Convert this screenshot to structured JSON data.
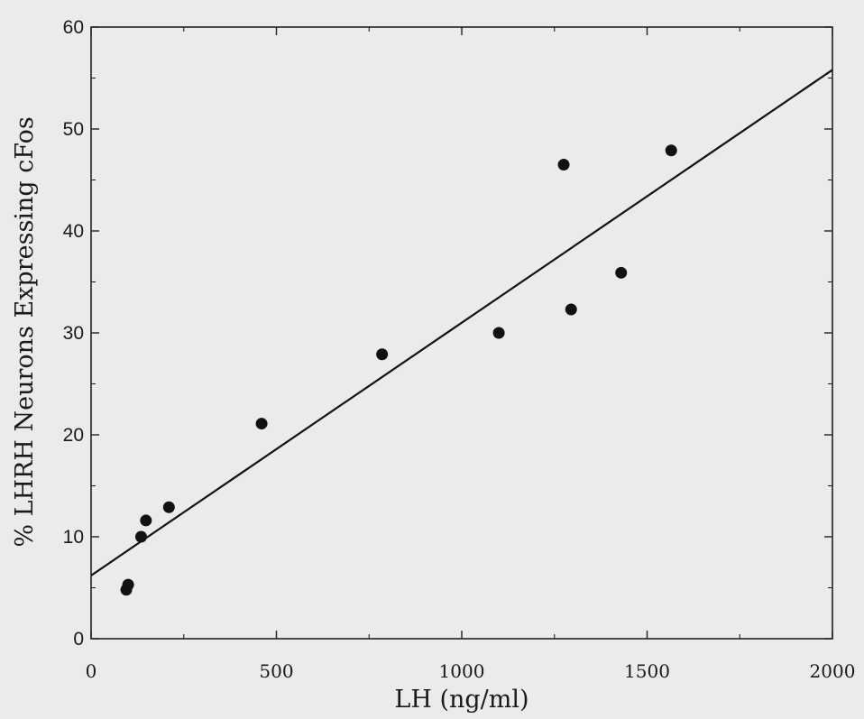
{
  "chart_data": {
    "type": "scatter",
    "title": "",
    "xlabel": "LH (ng/ml)",
    "ylabel": "% LHRH Neurons Expressing cFos",
    "xlim": [
      0,
      2000
    ],
    "ylim": [
      0,
      60
    ],
    "x_ticks": [
      0,
      500,
      1000,
      1500,
      2000
    ],
    "y_ticks": [
      0,
      10,
      20,
      30,
      40,
      50,
      60
    ],
    "grid": false,
    "series": [
      {
        "points": [
          {
            "x": 95,
            "y": 4.8
          },
          {
            "x": 100,
            "y": 5.3
          },
          {
            "x": 135,
            "y": 10.0
          },
          {
            "x": 148,
            "y": 11.6
          },
          {
            "x": 210,
            "y": 12.9
          },
          {
            "x": 460,
            "y": 21.1
          },
          {
            "x": 785,
            "y": 27.9
          },
          {
            "x": 1100,
            "y": 30.0
          },
          {
            "x": 1275,
            "y": 46.5
          },
          {
            "x": 1295,
            "y": 32.3
          },
          {
            "x": 1430,
            "y": 35.9
          },
          {
            "x": 1565,
            "y": 47.9
          }
        ]
      }
    ],
    "regression_line": {
      "x0": 0,
      "y0": 6.2,
      "x1": 2000,
      "y1": 55.8
    },
    "colors": {
      "marker": "#111111",
      "line": "#111111",
      "axis": "#222222",
      "background": "#ebebeb"
    }
  }
}
